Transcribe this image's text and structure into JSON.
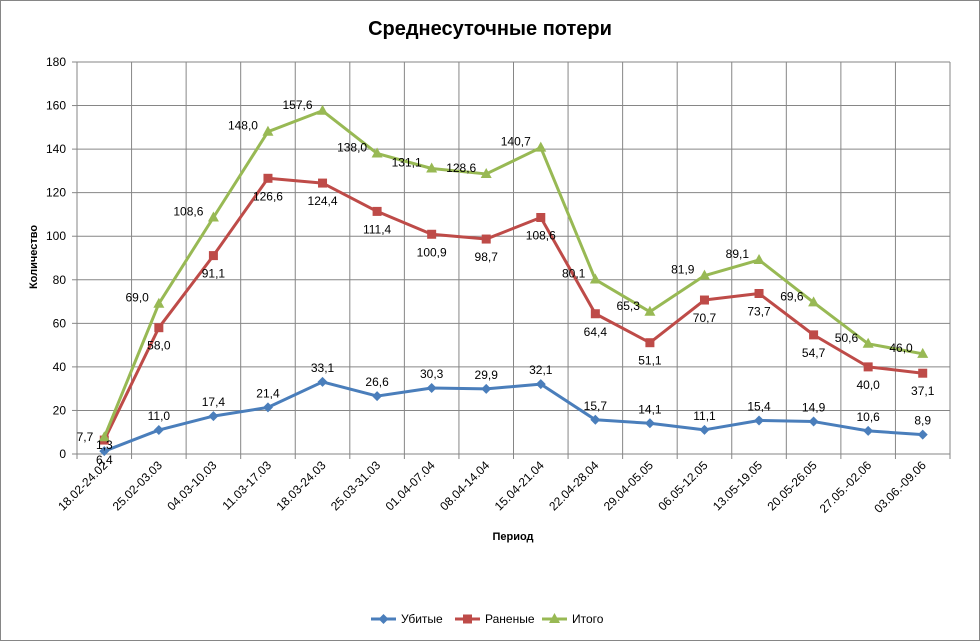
{
  "chart_data": {
    "type": "line",
    "title": "Среднесуточные потери",
    "xlabel": "Период",
    "ylabel": "Количество",
    "ylim": [
      0,
      180
    ],
    "yticks": [
      0,
      20,
      40,
      60,
      80,
      100,
      120,
      140,
      160,
      180
    ],
    "grid": true,
    "legend_position": "bottom",
    "categories": [
      "18.02-24.02",
      "25.02-03.03",
      "04.03-10.03",
      "11.03-17.03",
      "18.03-24.03",
      "25.03-31.03",
      "01.04-07.04",
      "08.04-14.04",
      "15.04-21.04",
      "22.04-28.04",
      "29.04-05.05",
      "06.05-12.05",
      "13.05-19.05",
      "20.05-26.05",
      "27.05.-02.06",
      "03.06.-09.06"
    ],
    "series": [
      {
        "name": "Убитые",
        "color": "#4a7ebb",
        "marker": "diamond",
        "values": [
          1.3,
          11.0,
          17.4,
          21.4,
          33.1,
          26.6,
          30.3,
          29.9,
          32.1,
          15.7,
          14.1,
          11.1,
          15.4,
          14.9,
          10.6,
          8.9
        ],
        "labels": [
          "1,3",
          "11,0",
          "17,4",
          "21,4",
          "33,1",
          "26,6",
          "30,3",
          "29,9",
          "32,1",
          "15,7",
          "14,1",
          "11,1",
          "15,4",
          "14,9",
          "10,6",
          "8,9"
        ]
      },
      {
        "name": "Раненые",
        "color": "#be4b48",
        "marker": "square",
        "values": [
          6.4,
          58.0,
          91.1,
          126.6,
          124.4,
          111.4,
          100.9,
          98.7,
          108.6,
          64.4,
          51.1,
          70.7,
          73.7,
          54.7,
          40.0,
          37.1
        ],
        "labels": [
          "6,4",
          "58,0",
          "91,1",
          "126,6",
          "124,4",
          "111,4",
          "100,9",
          "98,7",
          "108,6",
          "64,4",
          "51,1",
          "70,7",
          "73,7",
          "54,7",
          "40,0",
          "37,1"
        ]
      },
      {
        "name": "Итого",
        "color": "#98b954",
        "marker": "triangle",
        "values": [
          7.7,
          69.0,
          108.6,
          148.0,
          157.6,
          138.0,
          131.1,
          128.6,
          140.7,
          80.1,
          65.3,
          81.9,
          89.1,
          69.6,
          50.6,
          46.0
        ],
        "labels": [
          "7,7",
          "69,0",
          "108,6",
          "148,0",
          "157,6",
          "138,0",
          "131,1",
          "128,6",
          "140,7",
          "80,1",
          "65,3",
          "81,9",
          "89,1",
          "69,6",
          "50,6",
          "46,0"
        ]
      }
    ]
  }
}
